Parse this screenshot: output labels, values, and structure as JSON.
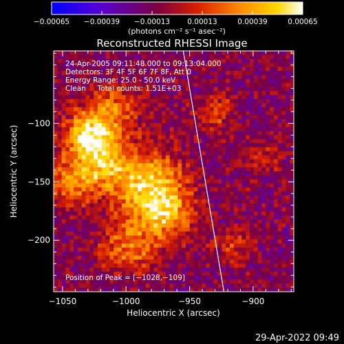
{
  "chart_data": {
    "type": "heatmap",
    "title": "Reconstructed RHESSI Image",
    "xlabel": "Heliocentric X (arcsec)",
    "ylabel": "Heliocentric Y (arcsec)",
    "xlim": [
      -1057,
      -868
    ],
    "ylim": [
      -244,
      -38
    ],
    "x_ticks": [
      -1050,
      -1000,
      -950,
      -900
    ],
    "x_tick_labels": [
      "−1050",
      "−1000",
      "−950",
      "−900"
    ],
    "y_ticks": [
      -100,
      -150,
      -200
    ],
    "y_tick_labels": [
      "−100",
      "−150",
      "−200"
    ],
    "colorbar": {
      "min": -0.00065,
      "max": 0.00065,
      "ticks": [
        -0.00065,
        -0.00039,
        -0.00013,
        0.00013,
        0.00039,
        0.00065
      ],
      "tick_labels": [
        "−0.00065",
        "−0.00039",
        "−0.00013",
        "0.00013",
        "0.00039",
        "0.00065"
      ],
      "unit_label": "(photons cm⁻² s⁻¹ asec⁻²)",
      "colors": [
        "#0000ff",
        "#5a00d0",
        "#7a0040",
        "#d82000",
        "#ff8a00",
        "#ffd800",
        "#ffffff"
      ]
    },
    "annotations": {
      "time_range": "24-Apr-2005 09:11:48.000 to 09:13:04.000",
      "detectors": "Detectors: 3F 4F 5F 6F 7F 8F, Att 0",
      "energy_range": "Energy Range: 25.0 - 50.0 keV",
      "method": "Clean     Total counts: 1.51E+03",
      "peak": "Position of Peak = [−1028,−109]"
    },
    "peak_position": [
      -1028,
      -109
    ],
    "limb_line": [
      [
        -955,
        -38
      ],
      [
        -923,
        -244
      ]
    ],
    "source_components": [
      {
        "x": -1028,
        "y": -109,
        "sigma": 14,
        "amplitude": 0.00065
      },
      {
        "x": -1020,
        "y": -135,
        "sigma": 16,
        "amplitude": 0.00045
      },
      {
        "x": -983,
        "y": -152,
        "sigma": 20,
        "amplitude": 0.0006
      },
      {
        "x": -968,
        "y": -178,
        "sigma": 15,
        "amplitude": 0.00045
      },
      {
        "x": -997,
        "y": -205,
        "sigma": 16,
        "amplitude": 0.0004
      },
      {
        "x": -1045,
        "y": -152,
        "sigma": 14,
        "amplitude": 0.00035
      },
      {
        "x": -1008,
        "y": -85,
        "sigma": 14,
        "amplitude": 0.00035
      },
      {
        "x": -930,
        "y": -90,
        "sigma": 10,
        "amplitude": 0.0003
      },
      {
        "x": -915,
        "y": -205,
        "sigma": 10,
        "amplitude": 0.00025
      },
      {
        "x": -890,
        "y": -130,
        "sigma": 9,
        "amplitude": 0.00022
      }
    ]
  },
  "footer": {
    "date": "29-Apr-2022 09:49"
  }
}
